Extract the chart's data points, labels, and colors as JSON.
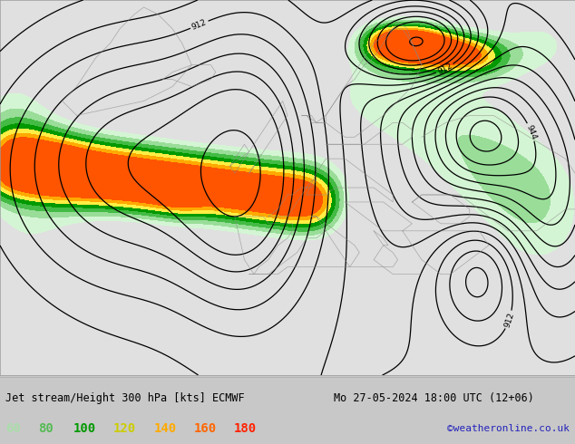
{
  "title_left": "Jet stream/Height 300 hPa [kts] ECMWF",
  "title_right": "Mo 27-05-2024 18:00 UTC (12+06)",
  "credit": "©weatheronline.co.uk",
  "legend_values": [
    "60",
    "80",
    "100",
    "120",
    "140",
    "160",
    "180"
  ],
  "legend_colors": [
    "#aaddaa",
    "#55bb55",
    "#009900",
    "#cccc00",
    "#ffaa00",
    "#ff6600",
    "#ff2200"
  ],
  "bg_color": "#c8c8c8",
  "map_bg": "#e0e0e0",
  "title_fontsize": 8.5,
  "credit_fontsize": 8,
  "legend_fontsize": 10,
  "lon_min": -58,
  "lon_max": 62,
  "lat_min": 22,
  "lat_max": 74,
  "fill_levels": [
    60,
    80,
    100,
    120,
    140,
    160,
    180,
    240
  ],
  "fill_colors": [
    "#d4f5d4",
    "#99dd99",
    "#44bb44",
    "#009900",
    "#ffee44",
    "#ffaa00",
    "#ff5500"
  ],
  "contour_levels": [
    880,
    888,
    896,
    900,
    904,
    908,
    912,
    916,
    920,
    924,
    928,
    932,
    936,
    940,
    944,
    948,
    952
  ],
  "label_levels": [
    880,
    912,
    944
  ],
  "contour_lw": 0.9
}
